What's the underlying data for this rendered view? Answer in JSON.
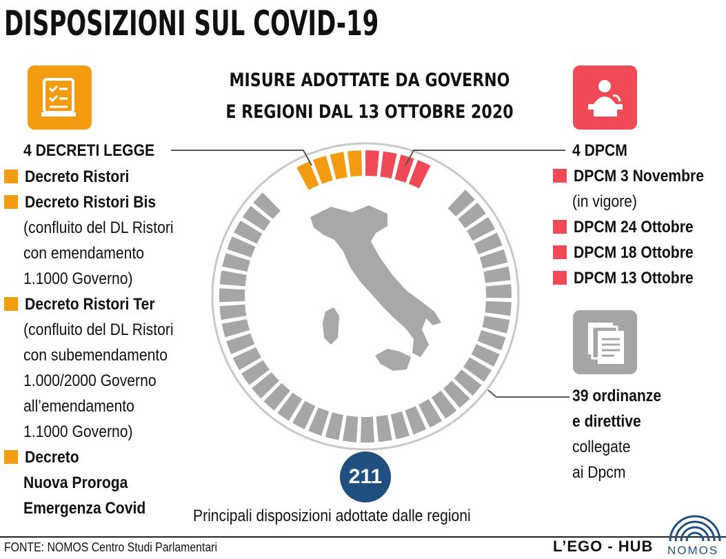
{
  "title": "DISPOSIZIONI SUL COVID-19",
  "subtitle": {
    "line1": "MISURE ADOTTATE DA GOVERNO",
    "line2": "E REGIONI DAL 13 OTTOBRE 2020"
  },
  "colors": {
    "orange": "#F39C12",
    "red": "#F04A56",
    "gray": "#A6A6A6",
    "navy": "#1F4F7E"
  },
  "left_icon": "checklist-icon",
  "right_icon": "speaker-podium-icon",
  "doc_icon": "documents-icon",
  "decreti": {
    "heading": "4 DECRETI LEGGE",
    "items": [
      {
        "name": "Decreto Ristori",
        "note_lines": []
      },
      {
        "name": "Decreto Ristori Bis",
        "note_lines": [
          "(confluito del DL Ristori",
          "con emendamento",
          "1.1000 Governo)"
        ]
      },
      {
        "name": "Decreto Ristori Ter",
        "note_lines": [
          "(confluito del DL Ristori",
          "con subemendamento",
          "1.000/2000 Governo",
          "all’emendamento",
          "1.1000 Governo)"
        ]
      },
      {
        "name_lines": [
          "Decreto",
          "Nuova Proroga",
          "Emergenza Covid"
        ]
      }
    ]
  },
  "dpcm": {
    "heading": "4 DPCM",
    "items": [
      {
        "name": "DPCM 3 Novembre",
        "note": "(in vigore)"
      },
      {
        "name": "DPCM 24 Ottobre"
      },
      {
        "name": "DPCM 18 Ottobre"
      },
      {
        "name": "DPCM 13 Ottobre"
      }
    ]
  },
  "ordinanze": {
    "line1": "39 ordinanze",
    "line2": "e direttive",
    "line3": "collegate",
    "line4": "ai Dpcm"
  },
  "regioni": {
    "count": "211",
    "label": "Principali disposizioni adottate dalle regioni"
  },
  "footer": {
    "source": "FONTE: NOMOS Centro Studi Parlamentari",
    "brand": "L’EGO - HUB",
    "logo": "NOMOS"
  },
  "ring": {
    "decreti_segments": 4,
    "dpcm_segments": 4,
    "other_segments": 39
  }
}
